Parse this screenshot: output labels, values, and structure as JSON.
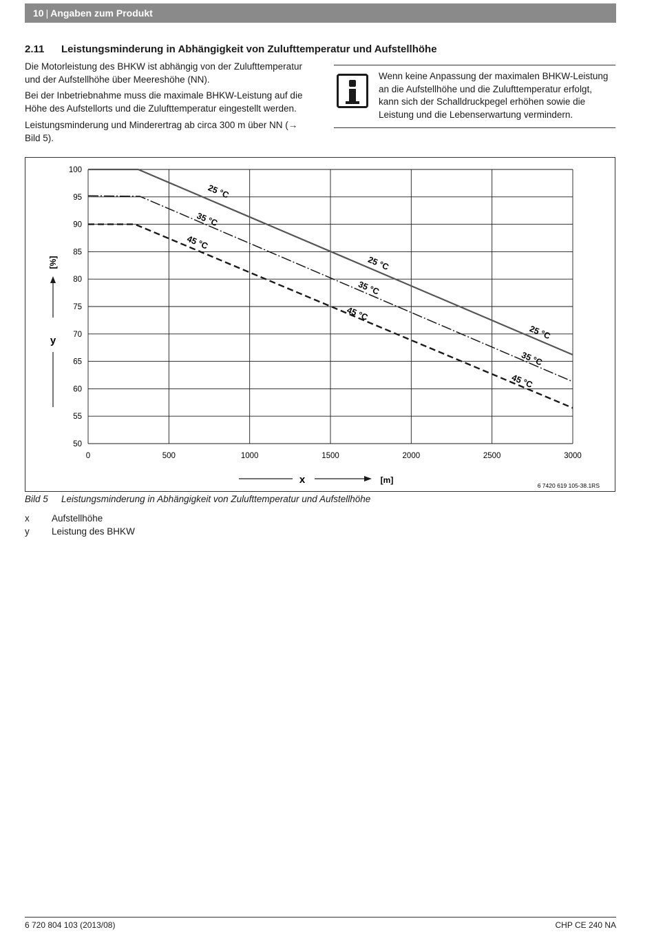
{
  "header": {
    "page_number": "10",
    "section": "Angaben zum Produkt"
  },
  "section": {
    "number": "2.11",
    "title": "Leistungsminderung in Abhängigkeit von Zulufttemperatur und Aufstellhöhe"
  },
  "paragraphs": [
    "Die Motorleistung des BHKW ist abhängig von der Zulufttemperatur und der Aufstellhöhe über Meereshöhe (NN).",
    "Bei der Inbetriebnahme muss die maximale BHKW-Leistung auf die Höhe des Aufstellorts und die Zulufttemperatur eingestellt werden.",
    "Leistungsminderung und Minderertrag ab circa 300 m über NN (→ Bild 5)."
  ],
  "info_box": {
    "icon": "info-icon",
    "text": "Wenn keine Anpassung der maximalen BHKW-Leistung an die Aufstellhöhe und die Zulufttemperatur erfolgt, kann sich der Schalldruckpegel erhöhen sowie die Leistung und die Lebenserwartung vermindern."
  },
  "chart_data": {
    "type": "line",
    "xlabel": "x",
    "xunit": "[m]",
    "ylabel": "y",
    "yunit": "[%]",
    "xlim": [
      0,
      3000
    ],
    "ylim": [
      50,
      100
    ],
    "xticks": [
      0,
      500,
      1000,
      1500,
      2000,
      2500,
      3000
    ],
    "yticks": [
      50,
      55,
      60,
      65,
      70,
      75,
      80,
      85,
      90,
      95,
      100
    ],
    "grid": true,
    "reference": "6 7420 619 105-38.1RS",
    "series": [
      {
        "name": "25 °C",
        "style": "solid",
        "points": [
          [
            0,
            100
          ],
          [
            310,
            100
          ],
          [
            3000,
            66.2
          ]
        ],
        "labels": [
          {
            "x": 800,
            "y": 95.5
          },
          {
            "x": 1790,
            "y": 82.4
          },
          {
            "x": 2790,
            "y": 69.8
          }
        ]
      },
      {
        "name": "35 °C",
        "style": "dashdot",
        "points": [
          [
            0,
            95.2
          ],
          [
            320,
            95.1
          ],
          [
            3000,
            61.3
          ]
        ],
        "labels": [
          {
            "x": 730,
            "y": 90.4
          },
          {
            "x": 1730,
            "y": 77.9
          },
          {
            "x": 2740,
            "y": 65.0
          }
        ]
      },
      {
        "name": "45 °C",
        "style": "dashed",
        "points": [
          [
            0,
            90
          ],
          [
            290,
            90
          ],
          [
            3000,
            56.5
          ]
        ],
        "labels": [
          {
            "x": 670,
            "y": 86.2
          },
          {
            "x": 1660,
            "y": 73.2
          },
          {
            "x": 2680,
            "y": 60.9
          }
        ]
      }
    ]
  },
  "figure": {
    "label": "Bild 5",
    "caption": "Leistungsminderung in Abhängigkeit von Zulufttemperatur und Aufstellhöhe"
  },
  "legend": [
    {
      "key": "x",
      "text": "Aufstellhöhe"
    },
    {
      "key": "y",
      "text": "Leistung des BHKW"
    }
  ],
  "footer": {
    "doc_id": "6 720 804 103 (2013/08)",
    "product": "CHP CE 240 NA"
  }
}
